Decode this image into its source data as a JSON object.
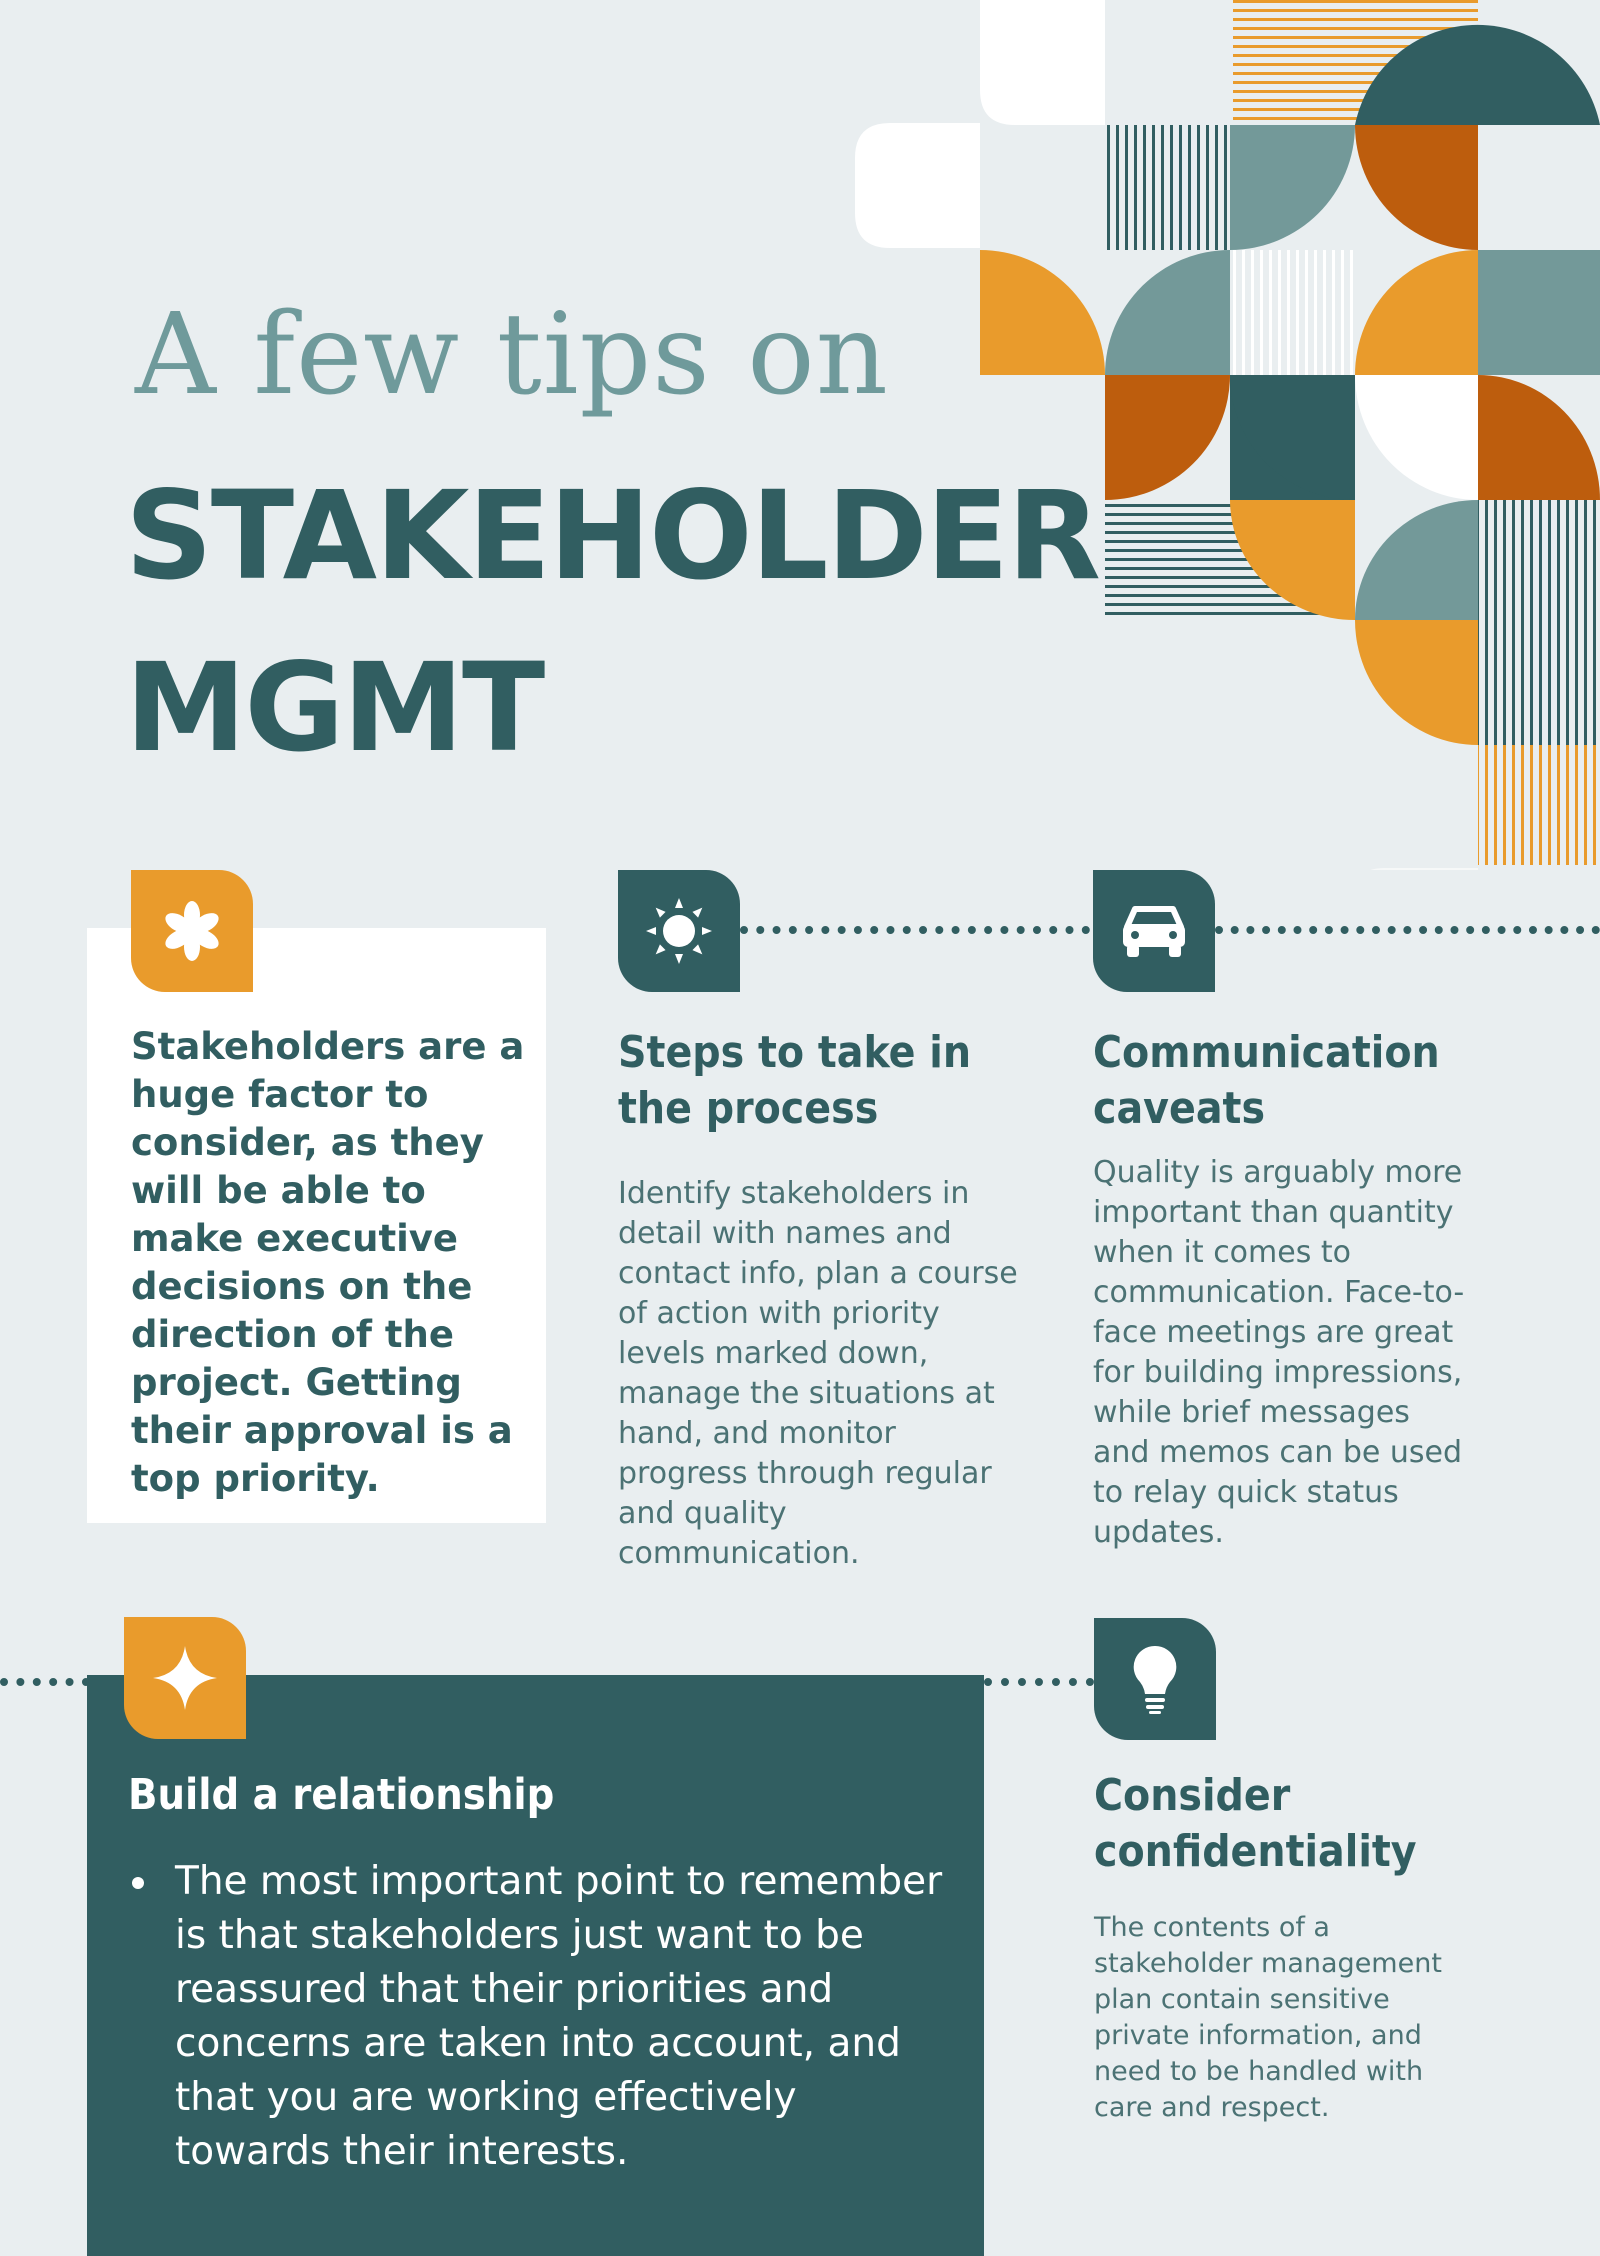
{
  "header": {
    "subtitle": "A few tips on",
    "title_line1": "STAKEHOLDER",
    "title_line2": "MGMT"
  },
  "intro_card": {
    "icon": "asterisk-icon",
    "text": "Stakeholders are a huge factor to consider, as they will be able to make executive decisions on the direction of the project. Getting their approval is a top priority."
  },
  "steps": {
    "icon": "sun-icon",
    "heading": "Steps to take in the process",
    "body": "Identify stakeholders in detail with names and contact info, plan a course of action with priority levels marked down, manage the situations at hand, and monitor progress through regular and quality communication."
  },
  "communication": {
    "icon": "car-icon",
    "heading": "Communication caveats",
    "body": "Quality is arguably more important than quantity when it comes to communication. Face-to-face meetings are great for building impressions, while brief messages and memos can be used to relay quick status updates."
  },
  "relationship": {
    "icon": "sparkle-icon",
    "heading": "Build a relationship",
    "bullet": "The most important point to remember is that stakeholders just want to be reassured that their priorities and concerns are taken into account, and that you are working effectively towards their interests."
  },
  "confidentiality": {
    "icon": "lightbulb-icon",
    "heading": "Consider confidentiality",
    "body": "The contents of a stakeholder management plan contain sensitive private information, and need to be handled with care and respect."
  },
  "colors": {
    "teal": "#315e61",
    "orange": "#e99b2c",
    "rust": "#bd5d0d",
    "sage": "#739999",
    "background": "#e9eef0"
  }
}
